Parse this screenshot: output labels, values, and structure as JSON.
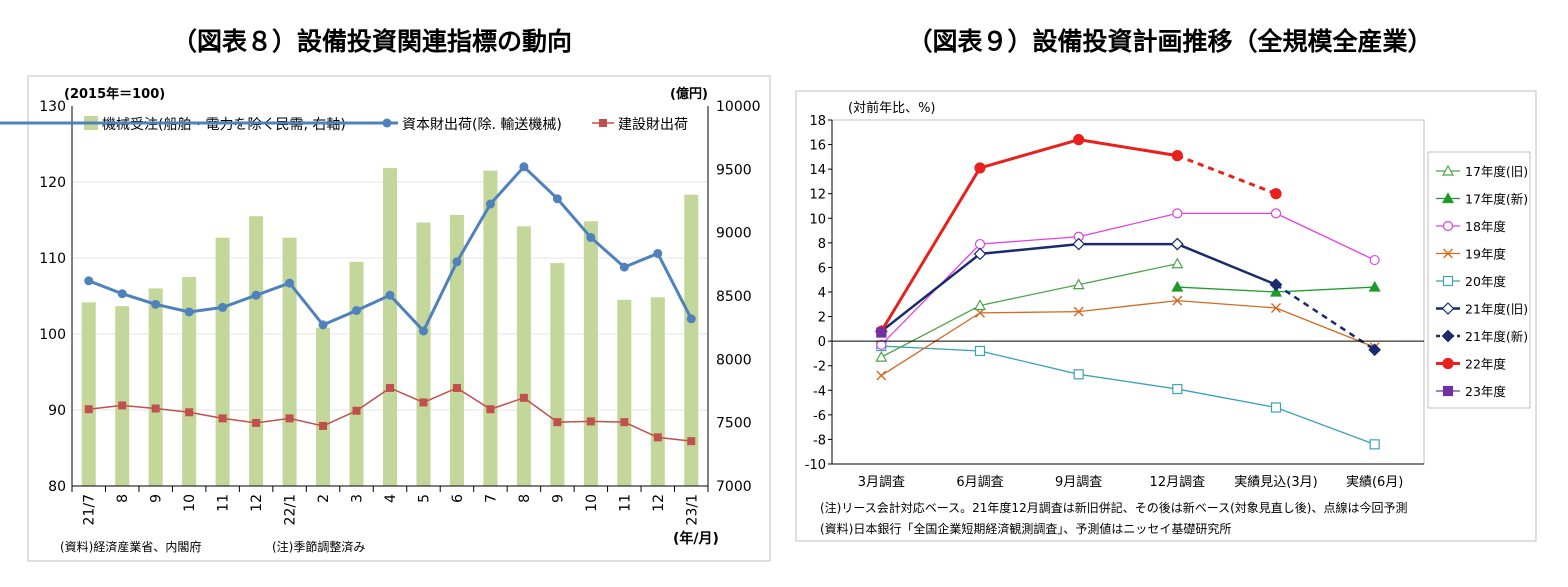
{
  "chart_data": [
    {
      "type": "bar+line",
      "title": "（図表８）設備投資関連指標の動向",
      "left_axis_unit": "(2015年＝100)",
      "right_axis_unit": "(億円)",
      "x_axis_unit": "(年/月)",
      "ylim_left": [
        80,
        130
      ],
      "ylim_right": [
        7000,
        10000
      ],
      "yticks_left": [
        "130",
        "120",
        "110",
        "100",
        "90",
        "80"
      ],
      "yticks_right": [
        "10000",
        "9500",
        "9000",
        "8500",
        "8000",
        "7500",
        "7000"
      ],
      "categories": [
        "21/7",
        "8",
        "9",
        "10",
        "11",
        "12",
        "22/1",
        "2",
        "3",
        "4",
        "5",
        "6",
        "7",
        "8",
        "9",
        "10",
        "11",
        "12",
        "23/1"
      ],
      "series": [
        {
          "name": "機械受注(船舶・電力を除く民需, 右軸)",
          "kind": "bar",
          "axis": "right",
          "color": "#c4d79b",
          "values": [
            8450,
            8420,
            8560,
            8650,
            8960,
            9130,
            8960,
            8250,
            8770,
            9510,
            9080,
            9140,
            9490,
            9050,
            8760,
            9090,
            8470,
            8490,
            9300
          ]
        },
        {
          "name": "資本財出荷(除. 輸送機械)",
          "kind": "line",
          "axis": "left",
          "color": "#4f81bd",
          "values": [
            107,
            105.3,
            103.9,
            102.9,
            103.5,
            105.1,
            106.7,
            101.2,
            103.1,
            105.1,
            100.4,
            109.5,
            117.1,
            122,
            117.8,
            112.7,
            108.8,
            110.6,
            102
          ]
        },
        {
          "name": "建設財出荷",
          "kind": "line",
          "axis": "left",
          "color": "#c0504d",
          "values": [
            90.1,
            90.6,
            90.2,
            89.7,
            88.9,
            88.3,
            88.9,
            87.9,
            89.9,
            92.9,
            91,
            92.9,
            90.1,
            91.6,
            88.4,
            88.5,
            88.4,
            86.4,
            85.9
          ]
        }
      ],
      "notes": [
        "(資料)経済産業省、内閣府",
        "(注)季節調整済み"
      ]
    },
    {
      "type": "line",
      "title": "（図表９）設備投資計画推移（全規模全産業）",
      "y_axis_unit": "(対前年比、%)",
      "ylim": [
        -10,
        18
      ],
      "yticks": [
        "18",
        "16",
        "14",
        "12",
        "10",
        "8",
        "6",
        "4",
        "2",
        "0",
        "-2",
        "-4",
        "-6",
        "-8",
        "-10"
      ],
      "categories": [
        "3月調査",
        "6月調査",
        "9月調査",
        "12月調査",
        "実績見込(3月)",
        "実績(6月)"
      ],
      "series": [
        {
          "name": "17年度(旧)",
          "color": "#4aa54a",
          "marker": "triangle-open",
          "values": [
            -1.3,
            2.9,
            4.6,
            6.3,
            null,
            null
          ]
        },
        {
          "name": "17年度(新)",
          "color": "#1f9a2a",
          "marker": "triangle",
          "values": [
            null,
            null,
            null,
            4.4,
            4.0,
            4.4
          ]
        },
        {
          "name": "18年度",
          "color": "#e040e0",
          "marker": "circle-open",
          "values": [
            -0.3,
            7.9,
            8.5,
            10.4,
            10.4,
            6.6
          ]
        },
        {
          "name": "19年度",
          "color": "#d26a22",
          "marker": "x",
          "values": [
            -2.8,
            2.3,
            2.4,
            3.3,
            2.7,
            -0.5
          ]
        },
        {
          "name": "20年度",
          "color": "#3aa3b8",
          "marker": "square-open",
          "values": [
            -0.4,
            -0.8,
            -2.7,
            -3.9,
            -5.4,
            -8.4
          ]
        },
        {
          "name": "21年度(旧)",
          "color": "#1a2a6c",
          "marker": "diamond-open",
          "values": [
            0.8,
            7.1,
            7.9,
            7.9,
            null,
            null
          ]
        },
        {
          "name": "21年度(新)",
          "color": "#1a2a6c",
          "marker": "diamond",
          "values": [
            null,
            null,
            null,
            7.9,
            4.6,
            -0.7
          ]
        },
        {
          "name": "22年度",
          "color": "#e8211d",
          "marker": "circle",
          "values": [
            0.8,
            14.1,
            16.4,
            15.1,
            12.0,
            null
          ]
        },
        {
          "name": "23年度",
          "color": "#7030a0",
          "marker": "square",
          "values": [
            0.7,
            null,
            null,
            null,
            null,
            null
          ]
        }
      ],
      "notes": [
        "(注)リース会計対応ベース。21年度12月調査は新旧併記、その後は新ベース(対象見直し後)、点線は今回予測",
        "(資料)日本銀行「全国企業短期経済観測調査」、予測値はニッセイ基礎研究所"
      ]
    }
  ]
}
